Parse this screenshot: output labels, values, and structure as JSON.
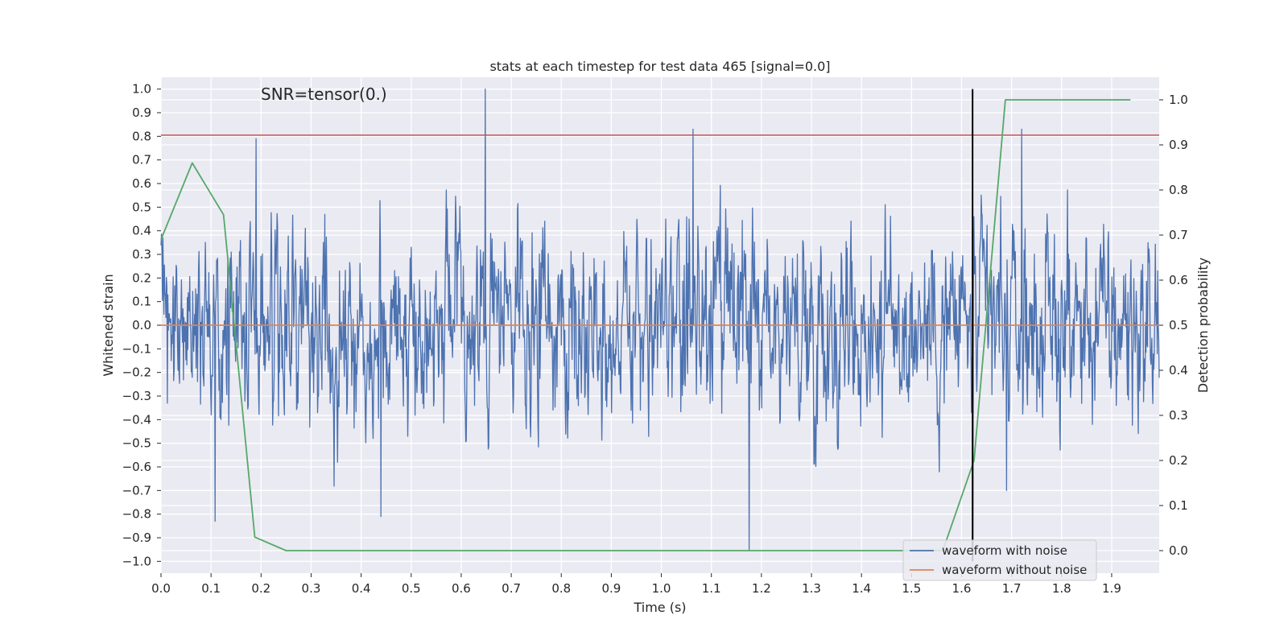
{
  "chart_data": {
    "type": "line",
    "title": "stats at each timestep for test data 465 [signal=0.0]",
    "annotation": "SNR=tensor(0.)",
    "xlabel": "Time (s)",
    "ylabel_left": "Whitened strain",
    "ylabel_right": "Detection probability",
    "xlim": [
      0.0,
      1.995
    ],
    "ylim_left": [
      -1.05,
      1.05
    ],
    "ylim_right": [
      -0.05,
      1.05
    ],
    "xticks": [
      "0.0",
      "0.1",
      "0.2",
      "0.3",
      "0.4",
      "0.5",
      "0.6",
      "0.7",
      "0.8",
      "0.9",
      "1.0",
      "1.1",
      "1.2",
      "1.3",
      "1.4",
      "1.5",
      "1.6",
      "1.7",
      "1.8",
      "1.9"
    ],
    "yticks_left": [
      "1.0",
      "0.9",
      "0.8",
      "0.7",
      "0.6",
      "0.5",
      "0.4",
      "0.3",
      "0.2",
      "0.1",
      "0.0",
      "−0.1",
      "−0.2",
      "−0.3",
      "−0.4",
      "−0.5",
      "−0.6",
      "−0.7",
      "−0.8",
      "−0.9",
      "−1.0"
    ],
    "yticks_right": [
      "1.0",
      "0.9",
      "0.8",
      "0.7",
      "0.6",
      "0.5",
      "0.4",
      "0.3",
      "0.2",
      "0.1",
      "0.0"
    ],
    "legend": {
      "position": "lower-right",
      "entries": [
        {
          "label": "waveform with noise",
          "color": "#4c72b0"
        },
        {
          "label": "waveform without noise",
          "color": "#dd8452"
        }
      ]
    },
    "series": [
      {
        "name": "waveform with noise",
        "axis": "left",
        "color": "#4c72b0",
        "x_start": 0.0,
        "x_end": 1.995,
        "num_samples": 2048,
        "envelope_min": -1.0,
        "envelope_max": 1.0,
        "notable_points": [
          {
            "x": 0.648,
            "y": 1.0
          },
          {
            "x": 1.063,
            "y": 0.83
          },
          {
            "x": 1.72,
            "y": 0.83
          },
          {
            "x": 0.19,
            "y": 0.79
          },
          {
            "x": 1.175,
            "y": -0.95
          },
          {
            "x": 1.623,
            "y": -0.98
          },
          {
            "x": 0.108,
            "y": -0.83
          },
          {
            "x": 0.44,
            "y": -0.81
          },
          {
            "x": 1.69,
            "y": -0.7
          }
        ]
      },
      {
        "name": "waveform without noise",
        "axis": "left",
        "color": "#dd8452",
        "x": [
          0.0,
          1.995
        ],
        "y": [
          0.0,
          0.0
        ]
      },
      {
        "name": "detection probability",
        "axis": "right",
        "color": "#55a868",
        "x": [
          0.0,
          0.0625,
          0.125,
          0.1875,
          0.25,
          0.3125,
          0.375,
          0.4375,
          0.5,
          0.5625,
          0.625,
          0.6875,
          0.75,
          0.8125,
          0.875,
          0.9375,
          1.0,
          1.0625,
          1.125,
          1.1875,
          1.25,
          1.3125,
          1.375,
          1.4375,
          1.5,
          1.5625,
          1.625,
          1.6875,
          1.75,
          1.8125,
          1.875,
          1.9375
        ],
        "y": [
          0.69,
          0.86,
          0.745,
          0.03,
          0.0,
          0.0,
          0.0,
          0.0,
          0.0,
          0.0,
          0.0,
          0.0,
          0.0,
          0.0,
          0.0,
          0.0,
          0.0,
          0.0,
          0.0,
          0.0,
          0.0,
          0.0,
          0.0,
          0.0,
          0.0,
          0.0,
          0.2,
          1.0,
          1.0,
          1.0,
          1.0,
          1.0
        ]
      }
    ],
    "threshold_line": {
      "axis": "left",
      "y": 0.805,
      "color": "#c44e52"
    },
    "marker_line": {
      "axis": "left",
      "x": 1.622,
      "y_from": -1.0,
      "y_to": 1.0,
      "color": "#000000"
    },
    "grid": true,
    "background": "#eaeaf2"
  }
}
